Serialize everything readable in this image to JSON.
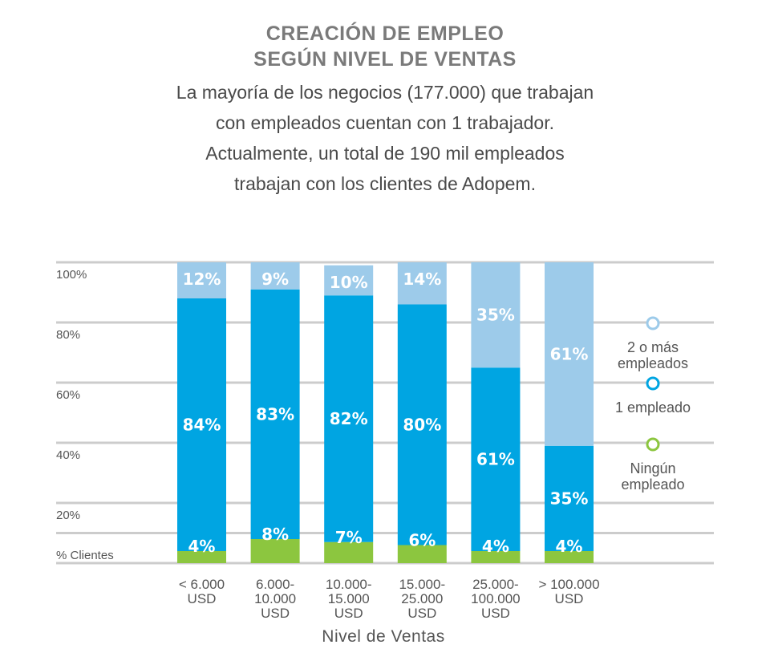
{
  "title_line1": "CREACIÓN DE EMPLEO",
  "title_line2": "SEGÚN NIVEL DE VENTAS",
  "subtitle_lines": [
    "La mayoría de los negocios (177.000) que trabajan",
    "con empleados cuentan con 1 trabajador.",
    "Actualmente, un total de 190 mil empleados",
    "trabajan con los clientes de Adopem."
  ],
  "colors": {
    "two_or_more": "#9dcbea",
    "one": "#00a5e2",
    "none": "#8cc63f",
    "grid": "#cccccc",
    "title": "#7a7a7a"
  },
  "chart_data": {
    "type": "bar",
    "stacked": true,
    "categories": [
      [
        "< 6.000",
        "USD"
      ],
      [
        "6.000-",
        "10.000",
        "USD"
      ],
      [
        "10.000-",
        "15.000",
        "USD"
      ],
      [
        "15.000-",
        "25.000",
        "USD"
      ],
      [
        "25.000-",
        "100.000",
        "USD"
      ],
      [
        "> 100.000",
        "USD"
      ]
    ],
    "series": [
      {
        "name": "Ningún empleado",
        "values": [
          4,
          8,
          7,
          6,
          4,
          4
        ],
        "labels": [
          "4%",
          "8%",
          "7%",
          "6%",
          "4%",
          "4%"
        ]
      },
      {
        "name": "1 empleado",
        "values": [
          84,
          83,
          82,
          80,
          61,
          35
        ],
        "labels": [
          "84%",
          "83%",
          "82%",
          "80%",
          "61%",
          "35%"
        ]
      },
      {
        "name": "2 o más empleados",
        "values": [
          12,
          9,
          10,
          14,
          35,
          61
        ],
        "labels": [
          "12%",
          "9%",
          "10%",
          "14%",
          "35%",
          "61%"
        ]
      }
    ],
    "yticks": [
      "% Clientes",
      "20%",
      "40%",
      "60%",
      "80%",
      "100%"
    ],
    "ylim": [
      0,
      100
    ],
    "xlabel": "Nivel de Ventas",
    "legend": [
      {
        "lines": [
          "2 o más",
          "empleados"
        ],
        "color": "#9dcbea"
      },
      {
        "lines": [
          "1 empleado"
        ],
        "color": "#00a5e2"
      },
      {
        "lines": [
          "Ningún",
          "empleado"
        ],
        "color": "#8cc63f"
      }
    ],
    "legend_position": "right",
    "grid": true
  }
}
